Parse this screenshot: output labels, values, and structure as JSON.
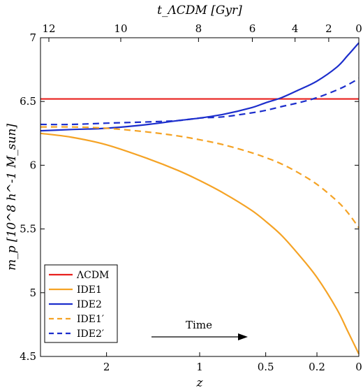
{
  "chart_data": {
    "type": "line",
    "title": "",
    "xlabel": "z",
    "ylabel": "m_p [10^8 h^-1 M_sun]",
    "top_xlabel": "t_ΛCDM [Gyr]",
    "x_scale": "log(1+z), reversed",
    "xlim": [
      3.0,
      0
    ],
    "ylim": [
      4.5,
      7
    ],
    "xticks": [
      2,
      1,
      0.5,
      0.2,
      0
    ],
    "xtick_labels": [
      "2",
      "1",
      "0.5",
      "0.2",
      "0"
    ],
    "yticks": [
      4.5,
      5,
      5.5,
      6,
      6.5,
      7
    ],
    "ytick_labels": [
      "4.5",
      "5",
      "5.5",
      "6",
      "6.5",
      "7"
    ],
    "top_ticks_z": [
      5.5,
      1.82,
      1.01,
      0.59,
      0.32,
      0.14,
      0
    ],
    "top_tick_labels": [
      "12",
      "10",
      "8",
      "6",
      "4",
      "2",
      "0"
    ],
    "grid": false,
    "legend_position": "bottom-left",
    "x": [
      3.0,
      2.5,
      2.0,
      1.5,
      1.2,
      1.0,
      0.8,
      0.6,
      0.5,
      0.4,
      0.3,
      0.2,
      0.1,
      0.05,
      0
    ],
    "series": [
      {
        "name": "ΛCDM",
        "color": "#e8201e",
        "dash": "solid",
        "values": [
          6.52,
          6.52,
          6.52,
          6.52,
          6.52,
          6.52,
          6.52,
          6.52,
          6.52,
          6.52,
          6.52,
          6.52,
          6.52,
          6.52,
          6.52
        ]
      },
      {
        "name": "IDE1",
        "color": "#f5a325",
        "dash": "solid",
        "values": [
          6.25,
          6.22,
          6.16,
          6.05,
          5.96,
          5.88,
          5.78,
          5.65,
          5.56,
          5.45,
          5.3,
          5.12,
          4.87,
          4.7,
          4.52
        ]
      },
      {
        "name": "IDE2",
        "color": "#1c2ecc",
        "dash": "solid",
        "values": [
          6.27,
          6.28,
          6.29,
          6.32,
          6.35,
          6.37,
          6.4,
          6.45,
          6.49,
          6.53,
          6.59,
          6.66,
          6.77,
          6.86,
          6.96
        ]
      },
      {
        "name": "IDE1′",
        "color": "#f5a325",
        "dash": "dashed",
        "values": [
          6.3,
          6.3,
          6.29,
          6.26,
          6.23,
          6.2,
          6.16,
          6.1,
          6.06,
          6.01,
          5.94,
          5.85,
          5.72,
          5.63,
          5.51
        ]
      },
      {
        "name": "IDE2′",
        "color": "#1c2ecc",
        "dash": "dashed",
        "values": [
          6.32,
          6.32,
          6.33,
          6.34,
          6.35,
          6.37,
          6.38,
          6.41,
          6.43,
          6.46,
          6.49,
          6.53,
          6.59,
          6.63,
          6.68
        ]
      }
    ],
    "annotation": {
      "text": "Time",
      "arrow": "right"
    }
  }
}
